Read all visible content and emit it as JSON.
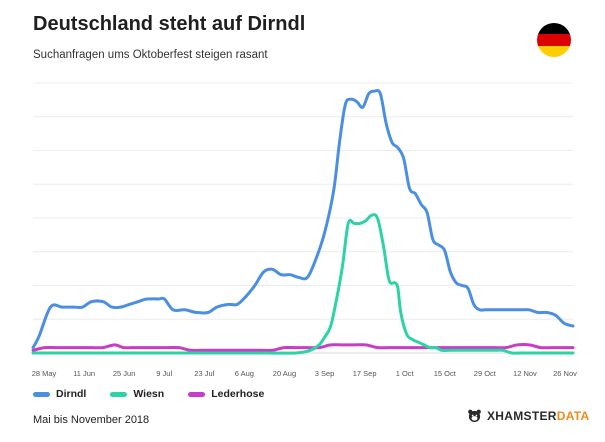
{
  "header": {
    "title": "Deutschland steht auf Dirndl",
    "subtitle": "Suchanfragen ums Oktoberfest steigen rasant"
  },
  "flag": {
    "colors": [
      "#000000",
      "#dd0000",
      "#ffce00"
    ]
  },
  "footer": {
    "source": "Mai bis November 2018",
    "brand_part1": "XHAMSTER",
    "brand_part2": "DATA"
  },
  "chart_data": {
    "type": "line",
    "title": "",
    "xlabel": "",
    "ylabel": "",
    "x_ticks": [
      "28 May",
      "11 Jun",
      "25 Jun",
      "9 Jul",
      "23 Jul",
      "6 Aug",
      "20 Aug",
      "3 Sep",
      "17 Sep",
      "1 Oct",
      "15 Oct",
      "29 Oct",
      "12 Nov",
      "26 Nov"
    ],
    "x_range_days": [
      0,
      185
    ],
    "ylim": [
      0,
      100
    ],
    "grid": true,
    "legend_position": "bottom-left",
    "series": [
      {
        "name": "Dirndl",
        "color": "#4a8fe2",
        "points": [
          [
            0,
            2
          ],
          [
            2,
            6
          ],
          [
            6,
            17
          ],
          [
            10,
            17
          ],
          [
            14,
            17
          ],
          [
            17,
            17
          ],
          [
            20,
            19
          ],
          [
            24,
            19
          ],
          [
            27,
            17
          ],
          [
            30,
            17
          ],
          [
            33,
            18
          ],
          [
            36,
            19
          ],
          [
            39,
            20
          ],
          [
            43,
            20
          ],
          [
            45,
            20
          ],
          [
            48,
            16
          ],
          [
            52,
            16
          ],
          [
            56,
            15
          ],
          [
            60,
            15
          ],
          [
            63,
            17
          ],
          [
            67,
            18
          ],
          [
            70,
            18
          ],
          [
            73,
            21
          ],
          [
            76,
            25
          ],
          [
            79,
            30
          ],
          [
            82,
            31
          ],
          [
            85,
            29
          ],
          [
            88,
            29
          ],
          [
            91,
            28
          ],
          [
            94,
            28
          ],
          [
            97,
            35
          ],
          [
            100,
            45
          ],
          [
            103,
            60
          ],
          [
            105,
            78
          ],
          [
            107,
            92
          ],
          [
            109,
            94
          ],
          [
            111,
            93
          ],
          [
            113,
            91
          ],
          [
            115,
            96
          ],
          [
            117,
            97
          ],
          [
            119,
            96
          ],
          [
            121,
            85
          ],
          [
            123,
            78
          ],
          [
            125,
            76
          ],
          [
            127,
            72
          ],
          [
            129,
            61
          ],
          [
            131,
            59
          ],
          [
            133,
            55
          ],
          [
            135,
            52
          ],
          [
            137,
            42
          ],
          [
            139,
            40
          ],
          [
            141,
            38
          ],
          [
            143,
            30
          ],
          [
            145,
            26
          ],
          [
            147,
            25
          ],
          [
            149,
            24
          ],
          [
            151,
            18
          ],
          [
            153,
            16
          ],
          [
            155,
            16
          ],
          [
            158,
            16
          ],
          [
            161,
            16
          ],
          [
            164,
            16
          ],
          [
            167,
            16
          ],
          [
            170,
            16
          ],
          [
            173,
            15
          ],
          [
            176,
            15
          ],
          [
            179,
            14
          ],
          [
            182,
            11
          ],
          [
            185,
            10
          ]
        ]
      },
      {
        "name": "Wiesn",
        "color": "#2bd3a6",
        "points": [
          [
            0,
            0
          ],
          [
            10,
            0
          ],
          [
            20,
            0
          ],
          [
            30,
            0
          ],
          [
            40,
            0
          ],
          [
            50,
            0
          ],
          [
            60,
            0
          ],
          [
            70,
            0
          ],
          [
            80,
            0
          ],
          [
            90,
            0
          ],
          [
            95,
            1
          ],
          [
            98,
            3
          ],
          [
            100,
            6
          ],
          [
            102,
            10
          ],
          [
            104,
            20
          ],
          [
            106,
            32
          ],
          [
            108,
            48
          ],
          [
            110,
            48
          ],
          [
            112,
            48
          ],
          [
            114,
            49
          ],
          [
            116,
            51
          ],
          [
            118,
            50
          ],
          [
            120,
            40
          ],
          [
            122,
            27
          ],
          [
            124,
            26
          ],
          [
            125,
            24
          ],
          [
            126,
            15
          ],
          [
            128,
            7
          ],
          [
            130,
            5
          ],
          [
            132,
            4
          ],
          [
            134,
            3
          ],
          [
            136,
            2
          ],
          [
            138,
            2
          ],
          [
            140,
            1
          ],
          [
            143,
            1
          ],
          [
            146,
            1
          ],
          [
            149,
            1
          ],
          [
            152,
            1
          ],
          [
            155,
            1
          ],
          [
            158,
            1
          ],
          [
            161,
            1
          ],
          [
            164,
            0
          ],
          [
            167,
            0
          ],
          [
            170,
            0
          ],
          [
            173,
            0
          ],
          [
            176,
            0
          ],
          [
            179,
            0
          ],
          [
            182,
            0
          ],
          [
            185,
            0
          ]
        ]
      },
      {
        "name": "Lederhose",
        "color": "#c93cc6",
        "points": [
          [
            0,
            1
          ],
          [
            4,
            2
          ],
          [
            8,
            2
          ],
          [
            12,
            2
          ],
          [
            16,
            2
          ],
          [
            20,
            2
          ],
          [
            24,
            2
          ],
          [
            28,
            3
          ],
          [
            31,
            2
          ],
          [
            34,
            2
          ],
          [
            38,
            2
          ],
          [
            42,
            2
          ],
          [
            46,
            2
          ],
          [
            50,
            2
          ],
          [
            54,
            1
          ],
          [
            58,
            1
          ],
          [
            62,
            1
          ],
          [
            66,
            1
          ],
          [
            70,
            1
          ],
          [
            74,
            1
          ],
          [
            78,
            1
          ],
          [
            82,
            1
          ],
          [
            86,
            2
          ],
          [
            90,
            2
          ],
          [
            94,
            2
          ],
          [
            98,
            2
          ],
          [
            102,
            3
          ],
          [
            106,
            3
          ],
          [
            110,
            3
          ],
          [
            114,
            3
          ],
          [
            118,
            2
          ],
          [
            122,
            2
          ],
          [
            126,
            2
          ],
          [
            130,
            2
          ],
          [
            134,
            2
          ],
          [
            138,
            2
          ],
          [
            142,
            2
          ],
          [
            146,
            2
          ],
          [
            150,
            2
          ],
          [
            154,
            2
          ],
          [
            158,
            2
          ],
          [
            162,
            2
          ],
          [
            166,
            3
          ],
          [
            170,
            3
          ],
          [
            174,
            2
          ],
          [
            178,
            2
          ],
          [
            182,
            2
          ],
          [
            185,
            2
          ]
        ]
      }
    ]
  }
}
